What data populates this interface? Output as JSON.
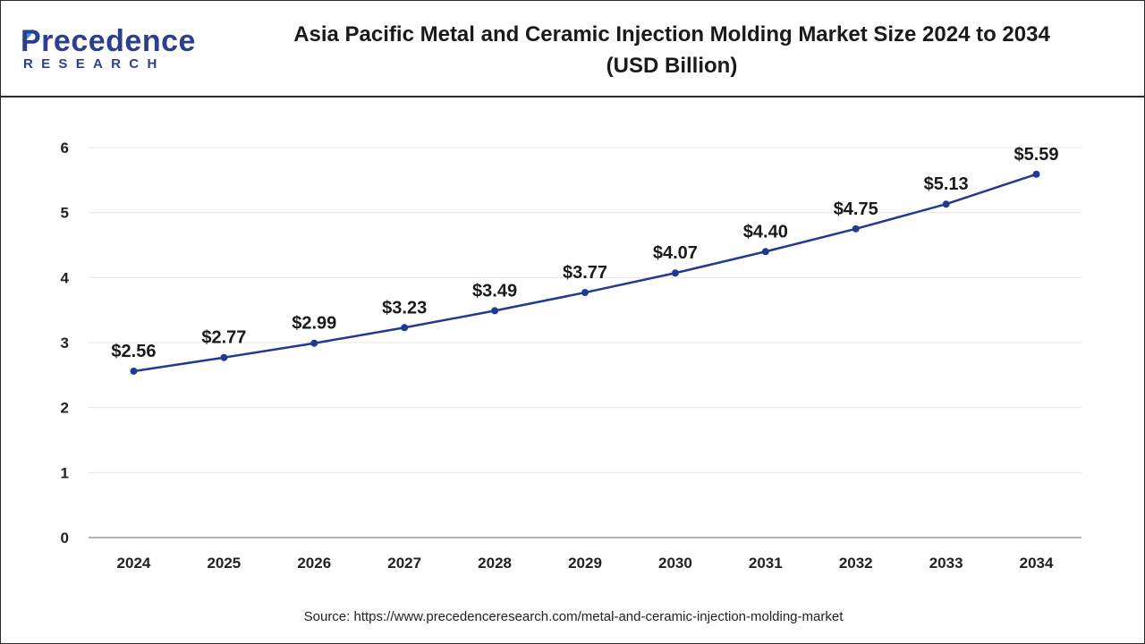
{
  "brand": {
    "name_main": "Precedence",
    "name_sub": "RESEARCH",
    "color": "#2c3e8f"
  },
  "title_line1": "Asia Pacific Metal and Ceramic Injection Molding Market Size 2024 to 2034",
  "title_line2": "(USD Billion)",
  "source": "Source: https://www.precedenceresearch.com/metal-and-ceramic-injection-molding-market",
  "chart_data": {
    "type": "line",
    "title": "Asia Pacific Metal and Ceramic Injection Molding Market Size 2024 to 2034 (USD Billion)",
    "xlabel": "",
    "ylabel": "",
    "categories": [
      "2024",
      "2025",
      "2026",
      "2027",
      "2028",
      "2029",
      "2030",
      "2031",
      "2032",
      "2033",
      "2034"
    ],
    "values": [
      2.56,
      2.77,
      2.99,
      3.23,
      3.49,
      3.77,
      4.07,
      4.4,
      4.75,
      5.13,
      5.59
    ],
    "data_labels": [
      "$2.56",
      "$2.77",
      "$2.99",
      "$3.23",
      "$3.49",
      "$3.77",
      "$4.07",
      "$4.40",
      "$4.75",
      "$5.13",
      "$5.59"
    ],
    "ylim": [
      0,
      6
    ],
    "yticks": [
      0,
      1,
      2,
      3,
      4,
      5,
      6
    ],
    "grid": true,
    "legend": "none",
    "line_color": "#1f3a93"
  }
}
